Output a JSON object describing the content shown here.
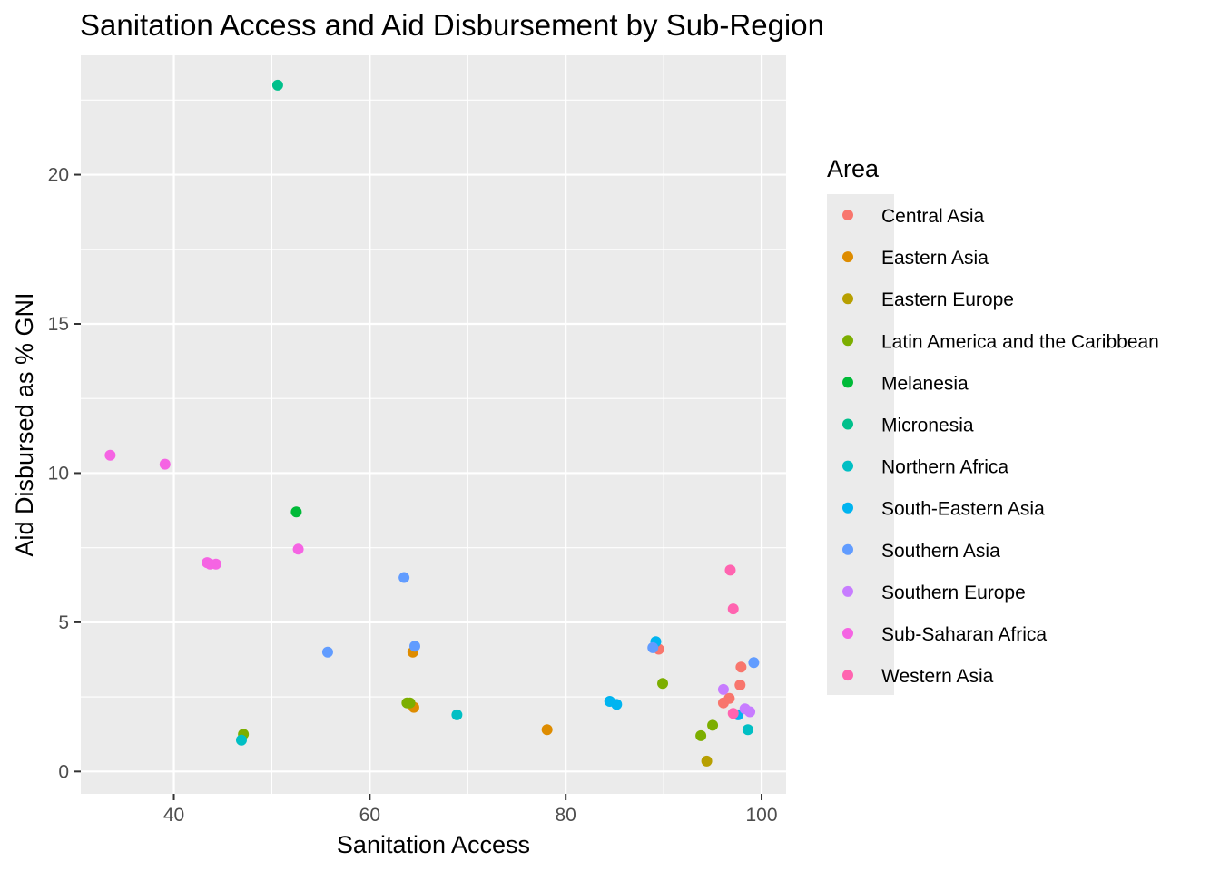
{
  "chart_data": {
    "type": "scatter",
    "title": "Sanitation Access and Aid Disbursement by Sub-Region",
    "xlabel": "Sanitation Access",
    "ylabel": "Aid Disbursed as % GNI",
    "xlim": [
      30.5,
      102.5
    ],
    "ylim": [
      -0.75,
      24.0
    ],
    "x_ticks": [
      40,
      60,
      80,
      100
    ],
    "y_ticks": [
      0,
      5,
      10,
      15,
      20
    ],
    "grid": true,
    "legend": {
      "title": "Area",
      "position": "right"
    },
    "series": [
      {
        "name": "Central Asia",
        "color": "#F8766D",
        "points": [
          [
            89.5,
            4.1
          ],
          [
            97.9,
            3.5
          ],
          [
            97.8,
            2.9
          ],
          [
            96.7,
            2.45
          ],
          [
            96.1,
            2.3
          ]
        ]
      },
      {
        "name": "Eastern Asia",
        "color": "#DE8C00",
        "points": [
          [
            64.4,
            4.0
          ],
          [
            64.5,
            2.15
          ],
          [
            78.1,
            1.4
          ]
        ]
      },
      {
        "name": "Eastern Europe",
        "color": "#B79F00",
        "points": [
          [
            94.4,
            0.35
          ]
        ]
      },
      {
        "name": "Latin America and the Caribbean",
        "color": "#7CAE00",
        "points": [
          [
            47.1,
            1.25
          ],
          [
            63.8,
            2.3
          ],
          [
            64.1,
            2.3
          ],
          [
            89.9,
            2.95
          ],
          [
            93.8,
            1.2
          ],
          [
            95.0,
            1.55
          ]
        ]
      },
      {
        "name": "Melanesia",
        "color": "#00BA38",
        "points": [
          [
            52.5,
            8.7
          ]
        ]
      },
      {
        "name": "Micronesia",
        "color": "#00C08B",
        "points": [
          [
            50.6,
            23.0
          ]
        ]
      },
      {
        "name": "Northern Africa",
        "color": "#00BFC4",
        "points": [
          [
            46.9,
            1.05
          ],
          [
            68.9,
            1.9
          ],
          [
            98.6,
            1.4
          ]
        ]
      },
      {
        "name": "South-Eastern Asia",
        "color": "#00B4F0",
        "points": [
          [
            89.2,
            4.35
          ],
          [
            84.5,
            2.35
          ],
          [
            85.2,
            2.25
          ],
          [
            97.6,
            1.9
          ]
        ]
      },
      {
        "name": "Southern Asia",
        "color": "#619CFF",
        "points": [
          [
            63.5,
            6.5
          ],
          [
            64.6,
            4.2
          ],
          [
            55.7,
            4.0
          ],
          [
            88.9,
            4.15
          ],
          [
            99.2,
            3.65
          ]
        ]
      },
      {
        "name": "Southern Europe",
        "color": "#C77CFF",
        "points": [
          [
            96.1,
            2.75
          ],
          [
            98.3,
            2.1
          ],
          [
            98.8,
            2.0
          ]
        ]
      },
      {
        "name": "Sub-Saharan Africa",
        "color": "#F564E3",
        "points": [
          [
            33.5,
            10.6
          ],
          [
            39.1,
            10.3
          ],
          [
            43.4,
            7.0
          ],
          [
            43.7,
            6.95
          ],
          [
            44.3,
            6.95
          ],
          [
            52.7,
            7.45
          ]
        ]
      },
      {
        "name": "Western Asia",
        "color": "#FF64B0",
        "points": [
          [
            96.8,
            6.75
          ],
          [
            97.1,
            5.45
          ],
          [
            97.1,
            1.95
          ]
        ]
      }
    ]
  }
}
